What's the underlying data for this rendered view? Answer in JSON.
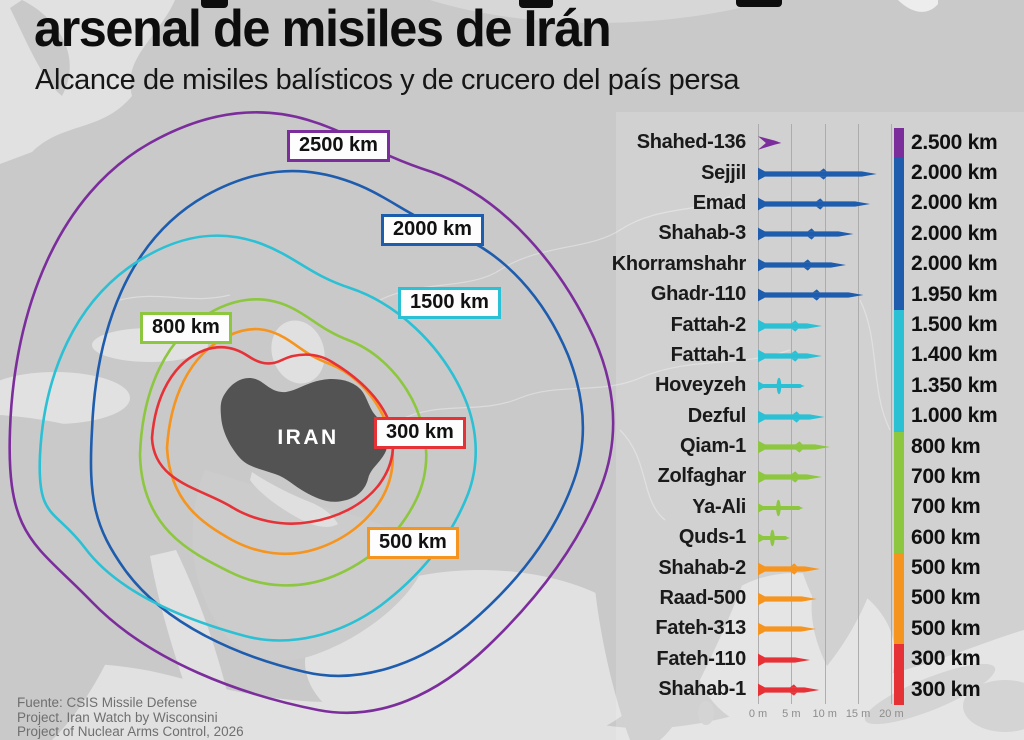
{
  "header": {
    "title": "arsenal de misiles de Irán",
    "subtitle": "Alcance de misiles balísticos y de crucero del país persa"
  },
  "map": {
    "country_label": "IRAN",
    "rings": [
      {
        "label": "2500 km",
        "range_km": 2500,
        "color": "#7c2d9c"
      },
      {
        "label": "2000 km",
        "range_km": 2000,
        "color": "#1e5cad"
      },
      {
        "label": "1500 km",
        "range_km": 1500,
        "color": "#2bc0d4"
      },
      {
        "label": "800 km",
        "range_km": 800,
        "color": "#8dc63f"
      },
      {
        "label": "500 km",
        "range_km": 500,
        "color": "#f5941e"
      },
      {
        "label": "300 km",
        "range_km": 300,
        "color": "#e63137"
      }
    ]
  },
  "chart_data": {
    "type": "table",
    "title": "Alcance de misiles balísticos y de crucero de Irán",
    "length_axis": {
      "ticks": [
        "0 m",
        "5 m",
        "10 m",
        "15 m",
        "20 m"
      ],
      "max_m": 20,
      "unit": "m"
    },
    "range_unit": "km",
    "missiles": [
      {
        "name": "Shahed-136",
        "range_label": "2.500 km",
        "range_km": 2500,
        "length_m": 3.5,
        "color": "#7c2d9c",
        "kind": "drone"
      },
      {
        "name": "Sejjil",
        "range_label": "2.000 km",
        "range_km": 2000,
        "length_m": 17.8,
        "color": "#1e5cad",
        "kind": "ballistic"
      },
      {
        "name": "Emad",
        "range_label": "2.000 km",
        "range_km": 2000,
        "length_m": 16.8,
        "color": "#1e5cad",
        "kind": "ballistic"
      },
      {
        "name": "Shahab-3",
        "range_label": "2.000 km",
        "range_km": 2000,
        "length_m": 14.3,
        "color": "#1e5cad",
        "kind": "ballistic"
      },
      {
        "name": "Khorramshahr",
        "range_label": "2.000 km",
        "range_km": 2000,
        "length_m": 13.2,
        "color": "#1e5cad",
        "kind": "ballistic"
      },
      {
        "name": "Ghadr-110",
        "range_label": "1.950 km",
        "range_km": 1950,
        "length_m": 15.8,
        "color": "#1e5cad",
        "kind": "ballistic"
      },
      {
        "name": "Fattah-2",
        "range_label": "1.500 km",
        "range_km": 1500,
        "length_m": 9.6,
        "color": "#2bc0d4",
        "kind": "ballistic"
      },
      {
        "name": "Fattah-1",
        "range_label": "1.400 km",
        "range_km": 1400,
        "length_m": 9.6,
        "color": "#2bc0d4",
        "kind": "ballistic"
      },
      {
        "name": "Hoveyzeh",
        "range_label": "1.350 km",
        "range_km": 1350,
        "length_m": 7.0,
        "color": "#2bc0d4",
        "kind": "cruise"
      },
      {
        "name": "Dezful",
        "range_label": "1.000 km",
        "range_km": 1000,
        "length_m": 10.0,
        "color": "#2bc0d4",
        "kind": "ballistic"
      },
      {
        "name": "Qiam-1",
        "range_label": "800 km",
        "range_km": 800,
        "length_m": 10.8,
        "color": "#8dc63f",
        "kind": "ballistic"
      },
      {
        "name": "Zolfaghar",
        "range_label": "700 km",
        "range_km": 700,
        "length_m": 9.6,
        "color": "#8dc63f",
        "kind": "ballistic"
      },
      {
        "name": "Ya-Ali",
        "range_label": "700 km",
        "range_km": 700,
        "length_m": 6.8,
        "color": "#8dc63f",
        "kind": "cruise"
      },
      {
        "name": "Quds-1",
        "range_label": "600 km",
        "range_km": 600,
        "length_m": 4.8,
        "color": "#8dc63f",
        "kind": "cruise"
      },
      {
        "name": "Shahab-2",
        "range_label": "500 km",
        "range_km": 500,
        "length_m": 9.3,
        "color": "#f5941e",
        "kind": "ballistic"
      },
      {
        "name": "Raad-500",
        "range_label": "500 km",
        "range_km": 500,
        "length_m": 8.8,
        "color": "#f5941e",
        "kind": "ballistic"
      },
      {
        "name": "Fateh-313",
        "range_label": "500 km",
        "range_km": 500,
        "length_m": 8.7,
        "color": "#f5941e",
        "kind": "ballistic"
      },
      {
        "name": "Fateh-110",
        "range_label": "300 km",
        "range_km": 300,
        "length_m": 7.8,
        "color": "#e63137",
        "kind": "ballistic"
      },
      {
        "name": "Shahab-1",
        "range_label": "300 km",
        "range_km": 300,
        "length_m": 9.2,
        "color": "#e63137",
        "kind": "ballistic"
      }
    ]
  },
  "footer": {
    "lines": [
      "Fuente: CSIS Missile Defense",
      "Project. Iran Watch by Wisconsini",
      "Project of Nuclear Arms Control, 2026"
    ]
  }
}
